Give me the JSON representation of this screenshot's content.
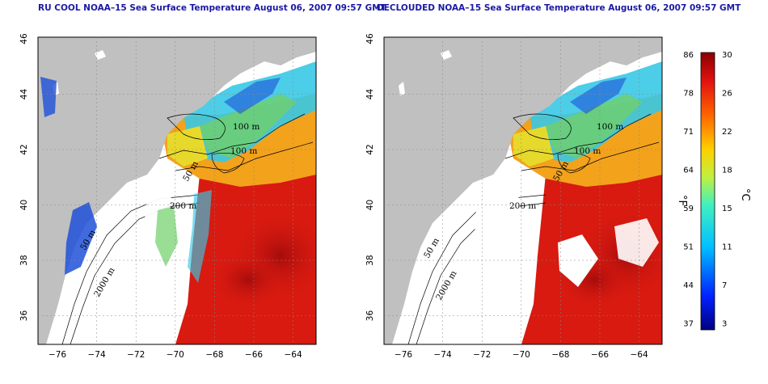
{
  "panels": [
    {
      "title": "RU COOL NOAA–15 Sea Surface Temperature August 06, 2007 09:57 GMT",
      "contour_labels": [
        "100 m",
        "100 m",
        "50 m",
        "200 m",
        "50 m",
        "2000 m"
      ]
    },
    {
      "title": "DECLOUDED NOAA–15 Sea Surface Temperature August 06, 2007 09:57 GMT",
      "contour_labels": [
        "100 m",
        "100 m",
        "50 m",
        "200 m",
        "50 m",
        "2000 m"
      ]
    }
  ],
  "axes": {
    "lon_ticks": [
      "−76",
      "−74",
      "−72",
      "−70",
      "−68",
      "−66",
      "−64"
    ],
    "lat_ticks": [
      "46",
      "44",
      "42",
      "40",
      "38",
      "36"
    ]
  },
  "colorbar": {
    "fahrenheit_unit": "°F",
    "celsius_unit": "°C",
    "fahrenheit_ticks": [
      "86",
      "78",
      "71",
      "64",
      "59",
      "51",
      "44",
      "37"
    ],
    "celsius_ticks": [
      "30",
      "26",
      "22",
      "18",
      "15",
      "11",
      "7",
      "3"
    ]
  },
  "colors": {
    "land": "#c0c0c0",
    "cloud": "#ffffff",
    "warm": "#d81a10",
    "hot": "#b00d0d",
    "orange": "#f3a21c",
    "yellow": "#e7d92b",
    "green": "#6fd06a",
    "cyan": "#38c8e6",
    "blue": "#1e50d8",
    "grid": "#888888",
    "title": "#1a1aa6"
  }
}
